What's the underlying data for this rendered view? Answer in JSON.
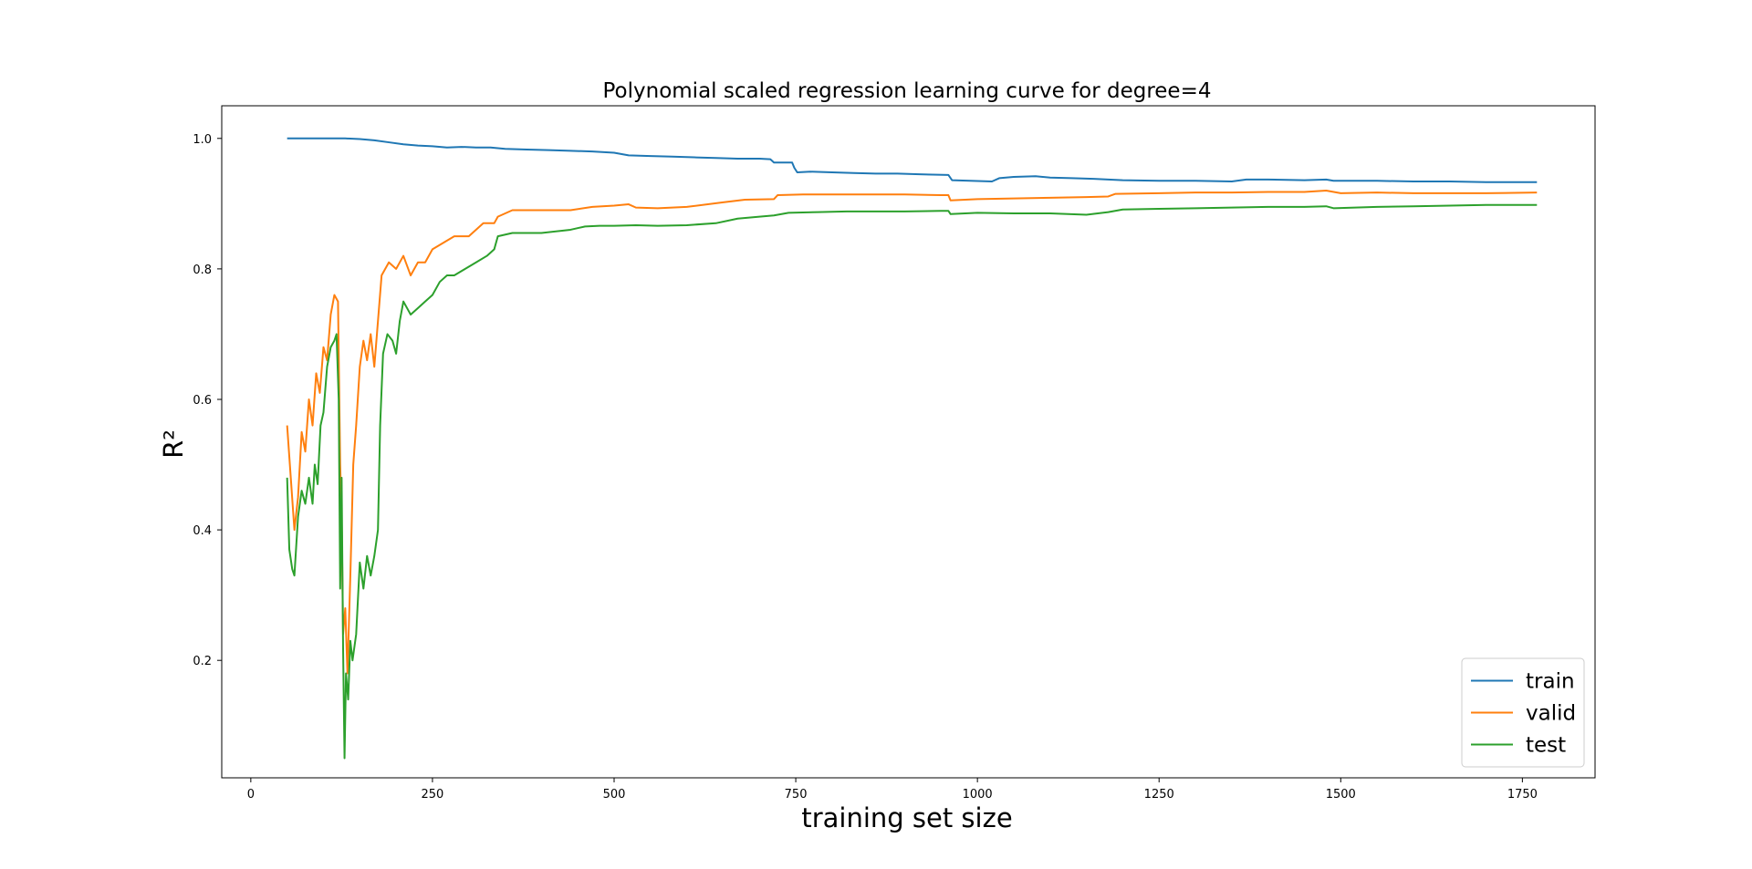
{
  "chart_data": {
    "type": "line",
    "title": "Polynomial scaled regression learning curve for degree=4",
    "xlabel": "training set size",
    "ylabel": "R²",
    "xlim": [
      -40,
      1850
    ],
    "ylim": [
      0.02,
      1.05
    ],
    "x_ticks": [
      0,
      250,
      500,
      750,
      1000,
      1250,
      1500,
      1750
    ],
    "x_tick_labels": [
      "0",
      "250",
      "500",
      "750",
      "1000",
      "1250",
      "1500",
      "1750"
    ],
    "y_ticks": [
      0.2,
      0.4,
      0.6,
      0.8,
      1.0
    ],
    "y_tick_labels": [
      "0.2",
      "0.4",
      "0.6",
      "0.8",
      "1.0"
    ],
    "grid": false,
    "legend_position": "lower-right",
    "series": [
      {
        "name": "train",
        "color": "#1f77b4",
        "points": [
          [
            50,
            1.0
          ],
          [
            70,
            1.0
          ],
          [
            90,
            1.0
          ],
          [
            110,
            1.0
          ],
          [
            130,
            1.0
          ],
          [
            150,
            0.999
          ],
          [
            170,
            0.997
          ],
          [
            190,
            0.994
          ],
          [
            210,
            0.991
          ],
          [
            230,
            0.989
          ],
          [
            250,
            0.988
          ],
          [
            270,
            0.986
          ],
          [
            290,
            0.987
          ],
          [
            310,
            0.986
          ],
          [
            330,
            0.986
          ],
          [
            350,
            0.984
          ],
          [
            380,
            0.983
          ],
          [
            410,
            0.982
          ],
          [
            440,
            0.981
          ],
          [
            470,
            0.98
          ],
          [
            500,
            0.978
          ],
          [
            520,
            0.974
          ],
          [
            550,
            0.973
          ],
          [
            580,
            0.972
          ],
          [
            610,
            0.971
          ],
          [
            640,
            0.97
          ],
          [
            670,
            0.969
          ],
          [
            700,
            0.969
          ],
          [
            715,
            0.968
          ],
          [
            720,
            0.963
          ],
          [
            745,
            0.963
          ],
          [
            748,
            0.955
          ],
          [
            752,
            0.948
          ],
          [
            770,
            0.949
          ],
          [
            800,
            0.948
          ],
          [
            830,
            0.947
          ],
          [
            860,
            0.946
          ],
          [
            890,
            0.946
          ],
          [
            920,
            0.945
          ],
          [
            960,
            0.944
          ],
          [
            965,
            0.936
          ],
          [
            990,
            0.935
          ],
          [
            1020,
            0.934
          ],
          [
            1030,
            0.939
          ],
          [
            1050,
            0.941
          ],
          [
            1080,
            0.942
          ],
          [
            1100,
            0.94
          ],
          [
            1130,
            0.939
          ],
          [
            1160,
            0.938
          ],
          [
            1200,
            0.936
          ],
          [
            1250,
            0.935
          ],
          [
            1300,
            0.935
          ],
          [
            1350,
            0.934
          ],
          [
            1370,
            0.937
          ],
          [
            1400,
            0.937
          ],
          [
            1450,
            0.936
          ],
          [
            1480,
            0.937
          ],
          [
            1490,
            0.935
          ],
          [
            1550,
            0.935
          ],
          [
            1600,
            0.934
          ],
          [
            1650,
            0.934
          ],
          [
            1700,
            0.933
          ],
          [
            1770,
            0.933
          ]
        ]
      },
      {
        "name": "valid",
        "color": "#ff7f0e",
        "points": [
          [
            50,
            0.56
          ],
          [
            55,
            0.48
          ],
          [
            60,
            0.4
          ],
          [
            65,
            0.45
          ],
          [
            70,
            0.55
          ],
          [
            75,
            0.52
          ],
          [
            80,
            0.6
          ],
          [
            85,
            0.56
          ],
          [
            90,
            0.64
          ],
          [
            95,
            0.61
          ],
          [
            100,
            0.68
          ],
          [
            105,
            0.66
          ],
          [
            110,
            0.73
          ],
          [
            115,
            0.76
          ],
          [
            120,
            0.75
          ],
          [
            123,
            0.5
          ],
          [
            125,
            0.42
          ],
          [
            127,
            0.24
          ],
          [
            130,
            0.28
          ],
          [
            133,
            0.18
          ],
          [
            137,
            0.33
          ],
          [
            141,
            0.5
          ],
          [
            145,
            0.56
          ],
          [
            150,
            0.65
          ],
          [
            155,
            0.69
          ],
          [
            160,
            0.66
          ],
          [
            165,
            0.7
          ],
          [
            170,
            0.65
          ],
          [
            175,
            0.72
          ],
          [
            180,
            0.79
          ],
          [
            190,
            0.81
          ],
          [
            200,
            0.8
          ],
          [
            210,
            0.82
          ],
          [
            220,
            0.79
          ],
          [
            230,
            0.81
          ],
          [
            240,
            0.81
          ],
          [
            250,
            0.83
          ],
          [
            265,
            0.84
          ],
          [
            280,
            0.85
          ],
          [
            300,
            0.85
          ],
          [
            320,
            0.87
          ],
          [
            335,
            0.87
          ],
          [
            340,
            0.88
          ],
          [
            360,
            0.89
          ],
          [
            400,
            0.89
          ],
          [
            440,
            0.89
          ],
          [
            470,
            0.895
          ],
          [
            500,
            0.897
          ],
          [
            520,
            0.899
          ],
          [
            530,
            0.894
          ],
          [
            560,
            0.893
          ],
          [
            600,
            0.895
          ],
          [
            650,
            0.902
          ],
          [
            680,
            0.906
          ],
          [
            720,
            0.907
          ],
          [
            725,
            0.913
          ],
          [
            760,
            0.914
          ],
          [
            800,
            0.914
          ],
          [
            850,
            0.914
          ],
          [
            900,
            0.914
          ],
          [
            950,
            0.913
          ],
          [
            960,
            0.913
          ],
          [
            963,
            0.905
          ],
          [
            1000,
            0.907
          ],
          [
            1050,
            0.908
          ],
          [
            1100,
            0.909
          ],
          [
            1150,
            0.91
          ],
          [
            1180,
            0.911
          ],
          [
            1190,
            0.915
          ],
          [
            1250,
            0.916
          ],
          [
            1300,
            0.917
          ],
          [
            1350,
            0.917
          ],
          [
            1400,
            0.918
          ],
          [
            1450,
            0.918
          ],
          [
            1480,
            0.92
          ],
          [
            1500,
            0.916
          ],
          [
            1550,
            0.917
          ],
          [
            1600,
            0.916
          ],
          [
            1650,
            0.916
          ],
          [
            1700,
            0.916
          ],
          [
            1770,
            0.917
          ]
        ]
      },
      {
        "name": "test",
        "color": "#2ca02c",
        "points": [
          [
            50,
            0.48
          ],
          [
            53,
            0.37
          ],
          [
            57,
            0.34
          ],
          [
            60,
            0.33
          ],
          [
            65,
            0.42
          ],
          [
            70,
            0.46
          ],
          [
            75,
            0.44
          ],
          [
            80,
            0.48
          ],
          [
            85,
            0.44
          ],
          [
            88,
            0.5
          ],
          [
            92,
            0.47
          ],
          [
            96,
            0.56
          ],
          [
            100,
            0.58
          ],
          [
            105,
            0.65
          ],
          [
            110,
            0.68
          ],
          [
            115,
            0.69
          ],
          [
            118,
            0.7
          ],
          [
            121,
            0.6
          ],
          [
            123,
            0.31
          ],
          [
            125,
            0.48
          ],
          [
            127,
            0.22
          ],
          [
            129,
            0.05
          ],
          [
            131,
            0.18
          ],
          [
            134,
            0.14
          ],
          [
            137,
            0.23
          ],
          [
            140,
            0.2
          ],
          [
            145,
            0.24
          ],
          [
            150,
            0.35
          ],
          [
            155,
            0.31
          ],
          [
            160,
            0.36
          ],
          [
            165,
            0.33
          ],
          [
            170,
            0.36
          ],
          [
            175,
            0.4
          ],
          [
            178,
            0.56
          ],
          [
            182,
            0.67
          ],
          [
            188,
            0.7
          ],
          [
            195,
            0.69
          ],
          [
            200,
            0.67
          ],
          [
            205,
            0.72
          ],
          [
            210,
            0.75
          ],
          [
            215,
            0.74
          ],
          [
            220,
            0.73
          ],
          [
            230,
            0.74
          ],
          [
            240,
            0.75
          ],
          [
            250,
            0.76
          ],
          [
            260,
            0.78
          ],
          [
            270,
            0.79
          ],
          [
            280,
            0.79
          ],
          [
            295,
            0.8
          ],
          [
            310,
            0.81
          ],
          [
            325,
            0.82
          ],
          [
            335,
            0.83
          ],
          [
            340,
            0.85
          ],
          [
            360,
            0.855
          ],
          [
            400,
            0.855
          ],
          [
            440,
            0.86
          ],
          [
            460,
            0.865
          ],
          [
            480,
            0.866
          ],
          [
            500,
            0.866
          ],
          [
            530,
            0.867
          ],
          [
            560,
            0.866
          ],
          [
            600,
            0.867
          ],
          [
            640,
            0.87
          ],
          [
            670,
            0.877
          ],
          [
            700,
            0.88
          ],
          [
            720,
            0.882
          ],
          [
            740,
            0.886
          ],
          [
            780,
            0.887
          ],
          [
            820,
            0.888
          ],
          [
            860,
            0.888
          ],
          [
            900,
            0.888
          ],
          [
            950,
            0.889
          ],
          [
            960,
            0.889
          ],
          [
            963,
            0.884
          ],
          [
            1000,
            0.886
          ],
          [
            1050,
            0.885
          ],
          [
            1100,
            0.885
          ],
          [
            1150,
            0.883
          ],
          [
            1180,
            0.887
          ],
          [
            1200,
            0.891
          ],
          [
            1250,
            0.892
          ],
          [
            1300,
            0.893
          ],
          [
            1350,
            0.894
          ],
          [
            1400,
            0.895
          ],
          [
            1450,
            0.895
          ],
          [
            1480,
            0.896
          ],
          [
            1490,
            0.893
          ],
          [
            1550,
            0.895
          ],
          [
            1600,
            0.896
          ],
          [
            1650,
            0.897
          ],
          [
            1700,
            0.898
          ],
          [
            1770,
            0.898
          ]
        ]
      }
    ]
  }
}
